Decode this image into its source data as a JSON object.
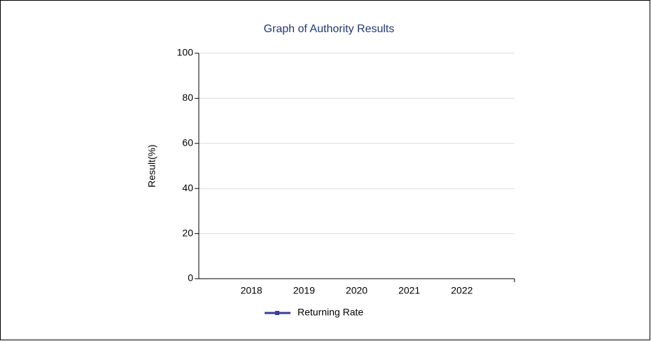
{
  "chart_data": {
    "type": "line",
    "title": "Graph of Authority Results",
    "ylabel": "Result(%)",
    "categories": [
      "2018",
      "2019",
      "2020",
      "2021",
      "2022"
    ],
    "series": [
      {
        "name": "Returning Rate",
        "color": "#3a3d9c",
        "values": [
          null,
          null,
          null,
          null,
          null
        ]
      }
    ],
    "ylim": [
      0,
      100
    ],
    "yticks": [
      0,
      20,
      40,
      60,
      80,
      100
    ],
    "grid": true,
    "legend": "bottom"
  }
}
